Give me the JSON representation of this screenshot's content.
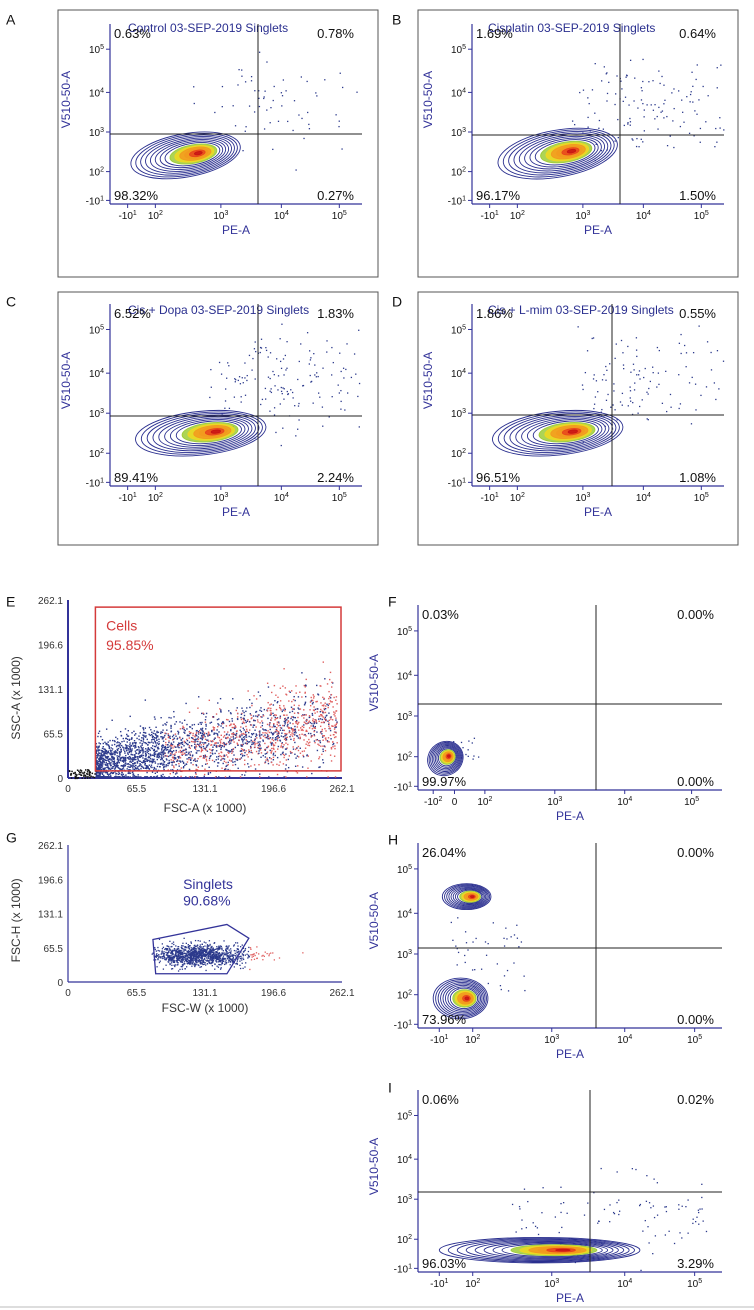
{
  "figure": {
    "panels": [
      {
        "id": "A",
        "kind": "contour",
        "title": "Control 03-SEP-2019 Singlets",
        "xlabel": "PE-A",
        "ylabel": "V510-50-A",
        "quadrants": [
          "0.63%",
          "0.78%",
          "98.32%",
          "0.27%"
        ]
      },
      {
        "id": "B",
        "kind": "contour",
        "title": "Cisplatin 03-SEP-2019 Singlets",
        "xlabel": "PE-A",
        "ylabel": "V510-50-A",
        "quadrants": [
          "1.69%",
          "0.64%",
          "96.17%",
          "1.50%"
        ]
      },
      {
        "id": "C",
        "kind": "contour",
        "title": "Cis + Dopa 03-SEP-2019 Singlets",
        "xlabel": "PE-A",
        "ylabel": "V510-50-A",
        "quadrants": [
          "6.52%",
          "1.83%",
          "89.41%",
          "2.24%"
        ]
      },
      {
        "id": "D",
        "kind": "contour",
        "title": "Cis + L-mim 03-SEP-2019 Singlets",
        "xlabel": "PE-A",
        "ylabel": "V510-50-A",
        "quadrants": [
          "1.86%",
          "0.55%",
          "96.51%",
          "1.08%"
        ]
      },
      {
        "id": "E",
        "kind": "scatter",
        "title": "",
        "xlabel": "FSC-A (x 1000)",
        "ylabel": "SSC-A (x 1000)",
        "gate_name": "Cells",
        "gate_pct": "95.85%"
      },
      {
        "id": "F",
        "kind": "contour",
        "title": "",
        "xlabel": "PE-A",
        "ylabel": "V510-50-A",
        "quadrants": [
          "0.03%",
          "0.00%",
          "99.97%",
          "0.00%"
        ]
      },
      {
        "id": "G",
        "kind": "scatter",
        "title": "",
        "xlabel": "FSC-W (x 1000)",
        "ylabel": "FSC-H (x 1000)",
        "gate_name": "Singlets",
        "gate_pct": "90.68%"
      },
      {
        "id": "H",
        "kind": "contour",
        "title": "",
        "xlabel": "PE-A",
        "ylabel": "V510-50-A",
        "quadrants": [
          "26.04%",
          "0.00%",
          "73.96%",
          "0.00%"
        ]
      },
      {
        "id": "I",
        "kind": "contour",
        "title": "",
        "xlabel": "PE-A",
        "ylabel": "V510-50-A",
        "quadrants": [
          "0.06%",
          "0.02%",
          "96.03%",
          "3.29%"
        ]
      }
    ],
    "log_x_ticks": [
      {
        "value": -10,
        "label": "-10",
        "sup": "1"
      },
      {
        "value": 100,
        "label": "10",
        "sup": "2"
      },
      {
        "value": 1000,
        "label": "10",
        "sup": "3"
      },
      {
        "value": 10000,
        "label": "10",
        "sup": "4"
      },
      {
        "value": 100000,
        "label": "10",
        "sup": "5"
      }
    ],
    "log_y_ticks": [
      {
        "value": -10,
        "label": "-10",
        "sup": "1"
      },
      {
        "value": 100,
        "label": "10",
        "sup": "2"
      },
      {
        "value": 1000,
        "label": "10",
        "sup": "3"
      },
      {
        "value": 10000,
        "label": "10",
        "sup": "4"
      },
      {
        "value": 100000,
        "label": "10",
        "sup": "5"
      }
    ],
    "log_x_ticks_F": [
      {
        "value": -100,
        "label": "-10",
        "sup": "2"
      },
      {
        "value": 0,
        "label": "0",
        "sup": ""
      },
      {
        "value": 100,
        "label": "10",
        "sup": "2"
      },
      {
        "value": 1000,
        "label": "10",
        "sup": "3"
      },
      {
        "value": 10000,
        "label": "10",
        "sup": "4"
      },
      {
        "value": 100000,
        "label": "10",
        "sup": "5"
      }
    ],
    "linear_ticks": [
      "0",
      "65.5",
      "131.1",
      "196.6",
      "262.1"
    ],
    "linear_ticks_x_E": [
      "0",
      "65.5",
      "131.1",
      "196.6",
      "262.1"
    ],
    "colors": {
      "axis": "#333399",
      "gate": "#d43a3a",
      "singlet_gate": "#333399",
      "dots_blue": "#2c3a8c",
      "dots_red": "#e06060",
      "text": "#111111"
    }
  },
  "chart_data": [
    {
      "type": "scatter",
      "panel": "A",
      "title": "Control 03-SEP-2019 Singlets",
      "xlabel": "PE-A",
      "ylabel": "V510-50-A",
      "x_scale": "biexponential",
      "y_scale": "biexponential",
      "quadrant_percentages": {
        "upper_left": 0.63,
        "upper_right": 0.78,
        "lower_left": 98.32,
        "lower_right": 0.27
      }
    },
    {
      "type": "scatter",
      "panel": "B",
      "title": "Cisplatin 03-SEP-2019 Singlets",
      "xlabel": "PE-A",
      "ylabel": "V510-50-A",
      "x_scale": "biexponential",
      "y_scale": "biexponential",
      "quadrant_percentages": {
        "upper_left": 1.69,
        "upper_right": 0.64,
        "lower_left": 96.17,
        "lower_right": 1.5
      }
    },
    {
      "type": "scatter",
      "panel": "C",
      "title": "Cis + Dopa 03-SEP-2019 Singlets",
      "xlabel": "PE-A",
      "ylabel": "V510-50-A",
      "x_scale": "biexponential",
      "y_scale": "biexponential",
      "quadrant_percentages": {
        "upper_left": 6.52,
        "upper_right": 1.83,
        "lower_left": 89.41,
        "lower_right": 2.24
      }
    },
    {
      "type": "scatter",
      "panel": "D",
      "title": "Cis + L-mim 03-SEP-2019 Singlets",
      "xlabel": "PE-A",
      "ylabel": "V510-50-A",
      "x_scale": "biexponential",
      "y_scale": "biexponential",
      "quadrant_percentages": {
        "upper_left": 1.86,
        "upper_right": 0.55,
        "lower_left": 96.51,
        "lower_right": 1.08
      }
    },
    {
      "type": "scatter",
      "panel": "E",
      "xlabel": "FSC-A (x 1000)",
      "ylabel": "SSC-A (x 1000)",
      "xlim": [
        0,
        262.1
      ],
      "ylim": [
        0,
        262.1
      ],
      "gates": [
        {
          "name": "Cells",
          "percent": 95.85
        }
      ]
    },
    {
      "type": "scatter",
      "panel": "F",
      "xlabel": "PE-A",
      "ylabel": "V510-50-A",
      "quadrant_percentages": {
        "upper_left": 0.03,
        "upper_right": 0.0,
        "lower_left": 99.97,
        "lower_right": 0.0
      }
    },
    {
      "type": "scatter",
      "panel": "G",
      "xlabel": "FSC-W (x 1000)",
      "ylabel": "FSC-H (x 1000)",
      "xlim": [
        0,
        262.1
      ],
      "ylim": [
        0,
        262.1
      ],
      "gates": [
        {
          "name": "Singlets",
          "percent": 90.68
        }
      ]
    },
    {
      "type": "scatter",
      "panel": "H",
      "xlabel": "PE-A",
      "ylabel": "V510-50-A",
      "quadrant_percentages": {
        "upper_left": 26.04,
        "upper_right": 0.0,
        "lower_left": 73.96,
        "lower_right": 0.0
      }
    },
    {
      "type": "scatter",
      "panel": "I",
      "xlabel": "PE-A",
      "ylabel": "V510-50-A",
      "quadrant_percentages": {
        "upper_left": 0.06,
        "upper_right": 0.02,
        "lower_left": 96.03,
        "lower_right": 3.29
      }
    }
  ]
}
